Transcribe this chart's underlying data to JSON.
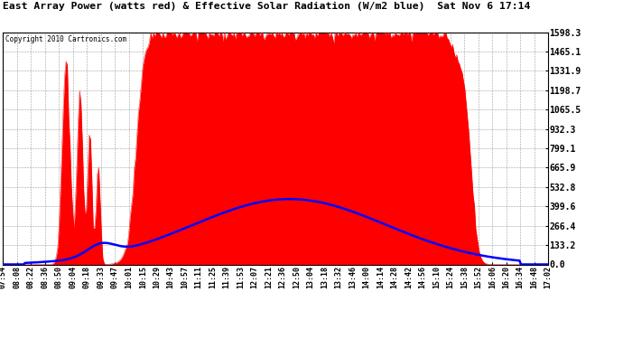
{
  "title": "East Array Power (watts red) & Effective Solar Radiation (W/m2 blue)  Sat Nov 6 17:14",
  "copyright": "Copyright 2010 Cartronics.com",
  "background_color": "#FFFFFF",
  "plot_bg_color": "#FFFFFF",
  "grid_color": "#888888",
  "y_ticks": [
    0.0,
    133.2,
    266.4,
    399.6,
    532.8,
    665.9,
    799.1,
    932.3,
    1065.5,
    1198.7,
    1331.9,
    1465.1,
    1598.3
  ],
  "y_max": 1598.3,
  "x_labels": [
    "07:54",
    "08:08",
    "08:22",
    "08:36",
    "08:50",
    "09:04",
    "09:18",
    "09:33",
    "09:47",
    "10:01",
    "10:15",
    "10:29",
    "10:43",
    "10:57",
    "11:11",
    "11:25",
    "11:39",
    "11:53",
    "12:07",
    "12:21",
    "12:36",
    "12:50",
    "13:04",
    "13:18",
    "13:32",
    "13:46",
    "14:00",
    "14:14",
    "14:28",
    "14:42",
    "14:56",
    "15:10",
    "15:24",
    "15:38",
    "15:52",
    "16:06",
    "16:20",
    "16:34",
    "16:48",
    "17:02"
  ]
}
